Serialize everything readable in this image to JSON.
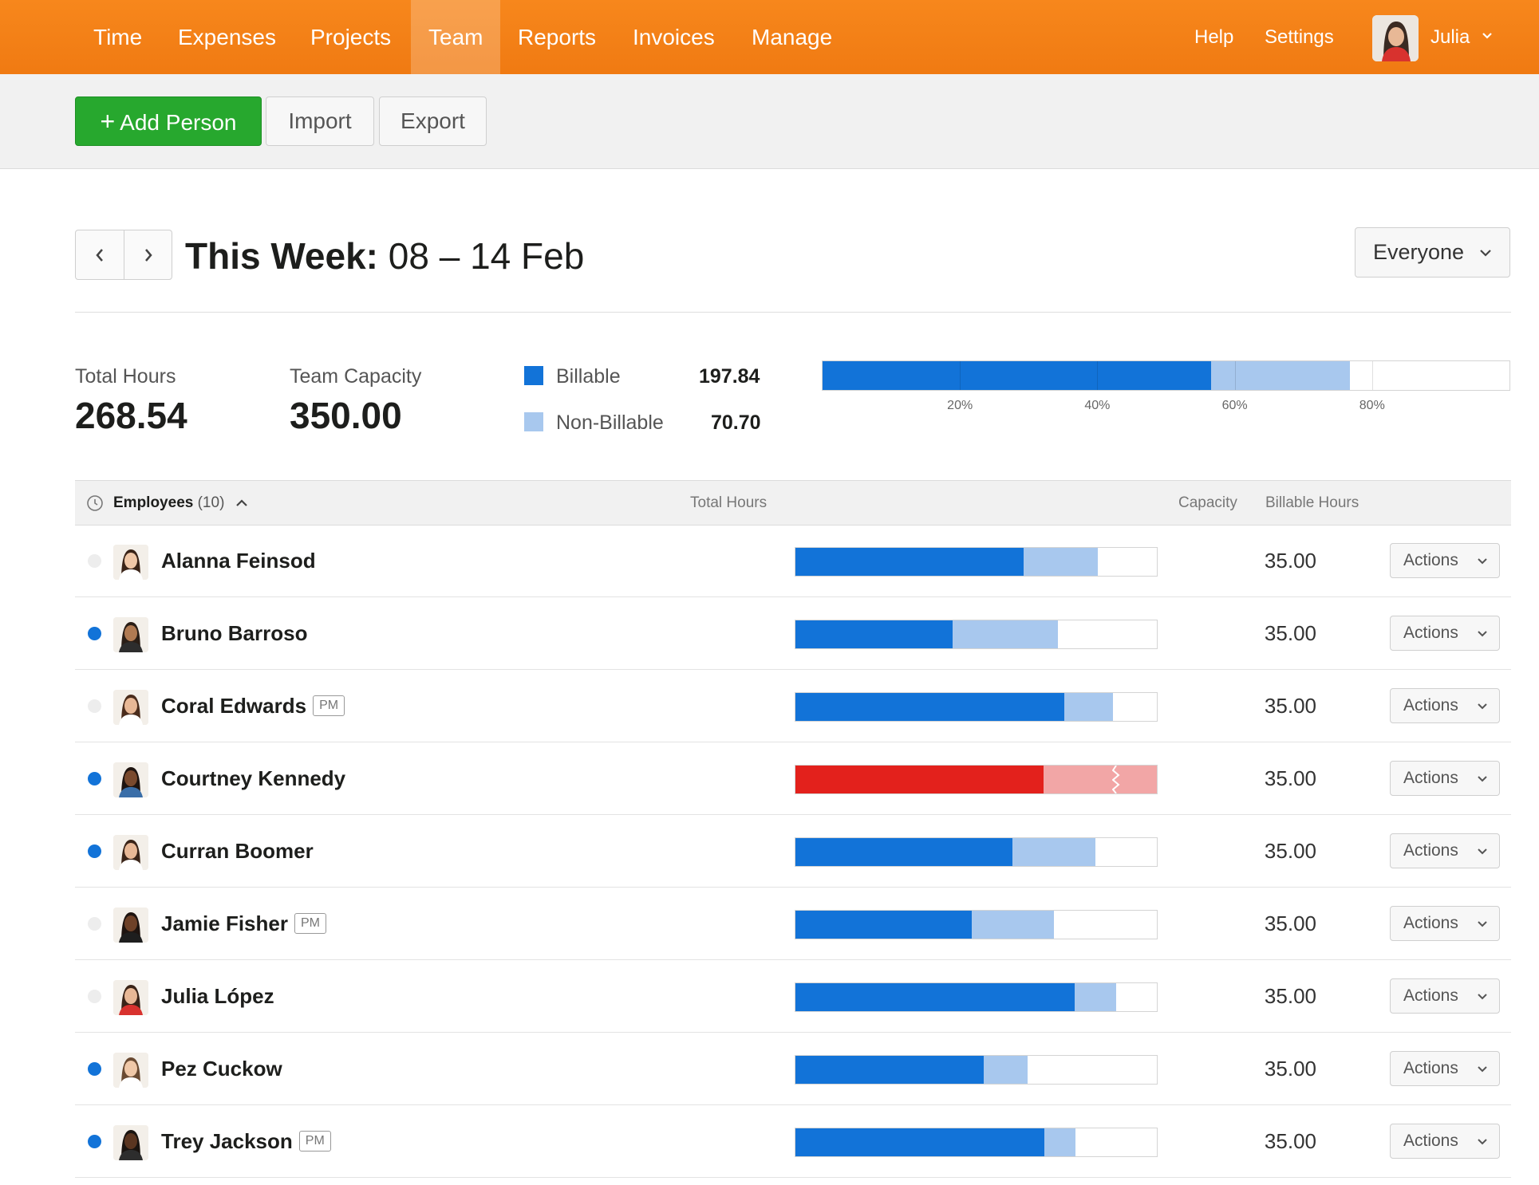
{
  "nav": {
    "items": [
      {
        "label": "Time",
        "active": false
      },
      {
        "label": "Expenses",
        "active": false
      },
      {
        "label": "Projects",
        "active": false
      },
      {
        "label": "Team",
        "active": true
      },
      {
        "label": "Reports",
        "active": false
      },
      {
        "label": "Invoices",
        "active": false
      },
      {
        "label": "Manage",
        "active": false
      }
    ],
    "help": "Help",
    "settings": "Settings",
    "user": "Julia"
  },
  "toolbar": {
    "add_person": "Add Person",
    "import": "Import",
    "export": "Export"
  },
  "week": {
    "label": "This Week:",
    "range": "08 – 14 Feb",
    "filter": "Everyone"
  },
  "summary": {
    "total_hours_label": "Total Hours",
    "total_hours": "268.54",
    "capacity_label": "Team Capacity",
    "capacity": "350.00",
    "billable_label": "Billable",
    "billable": "197.84",
    "nonbillable_label": "Non-Billable",
    "nonbillable": "70.70",
    "ticks": [
      "20%",
      "40%",
      "60%",
      "80%"
    ]
  },
  "colors": {
    "nav": "#f47f16",
    "billable": "#1273d8",
    "nonbillable": "#a8c8ee",
    "over": "#e3211c",
    "over_light": "#f2a6a6",
    "add": "#27a82e"
  },
  "table": {
    "employees_label": "Employees",
    "employees_count": "(10)",
    "col_total": "Total Hours",
    "col_capacity": "Capacity",
    "col_billable": "Billable Hours",
    "actions_label": "Actions",
    "pm_badge": "PM",
    "rows": [
      {
        "name": "Alanna Feinsod",
        "pm": false,
        "dot": false,
        "total": "29.28",
        "capacity": "35.00",
        "billable": "22.08"
      },
      {
        "name": "Bruno Barroso",
        "pm": false,
        "dot": true,
        "total": "25.40",
        "capacity": "35.00",
        "billable": "15.20"
      },
      {
        "name": "Coral Edwards",
        "pm": true,
        "dot": false,
        "total": "30.73",
        "capacity": "35.00",
        "billable": "26.03"
      },
      {
        "name": "Courtney Kennedy",
        "pm": false,
        "dot": true,
        "total": "39.40",
        "capacity": "35.00",
        "billable": "27.07"
      },
      {
        "name": "Curran Boomer",
        "pm": false,
        "dot": true,
        "total": "29.03",
        "capacity": "35.00",
        "billable": "21.00"
      },
      {
        "name": "Jamie Fisher",
        "pm": true,
        "dot": false,
        "total": "25.07",
        "capacity": "35.00",
        "billable": "17.05"
      },
      {
        "name": "Julia López",
        "pm": false,
        "dot": false,
        "total": "31.07",
        "capacity": "35.00",
        "billable": "27.07"
      },
      {
        "name": "Pez Cuckow",
        "pm": false,
        "dot": true,
        "total": "22.47",
        "capacity": "35.00",
        "billable": "18.27"
      },
      {
        "name": "Trey Jackson",
        "pm": true,
        "dot": true,
        "total": "27.09",
        "capacity": "35.00",
        "billable": "24.07"
      }
    ]
  }
}
